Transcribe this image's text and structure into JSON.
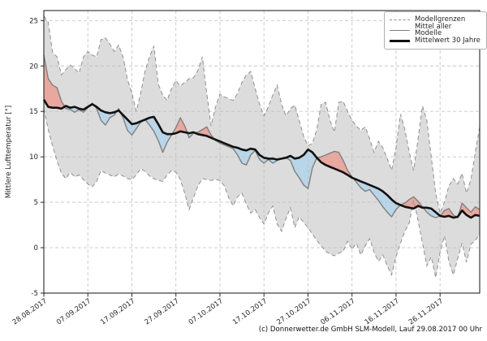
{
  "figure": {
    "caption": "(c) Donnerwetter.de GmbH SLM-Modell, Lauf 29.08.2017 00 Uhr"
  },
  "legend": {
    "position": "top-right",
    "items": [
      {
        "label": "Modellgrenzen",
        "swatch": "dashed-gray-line"
      },
      {
        "label": "Mittel aller Modelle",
        "swatch": "solid-gray-line"
      },
      {
        "label": "Mittelwert 30 Jahre",
        "swatch": "thick-black-line"
      }
    ]
  },
  "chart_data": {
    "type": "line",
    "title": "",
    "xlabel": "",
    "ylabel": "Mittlere Lufttemperatur [°]",
    "grid": true,
    "x_unit": "day index, day 0 = 28.08.2017, daily steps to ~05.12.2017",
    "ylim": [
      -5,
      26.1
    ],
    "y_ticks": [
      -5,
      0,
      5,
      10,
      15,
      20,
      25
    ],
    "x_tick_days": [
      0,
      10,
      20,
      30,
      40,
      50,
      60,
      70,
      80,
      90
    ],
    "x_tick_labels": [
      "28.08.2017",
      "07.09.2017",
      "17.09.2017",
      "27.09.2017",
      "07.10.2017",
      "17.10.2017",
      "27.10.2017",
      "06.11.2017",
      "16.11.2017",
      "26.11.2017"
    ],
    "colors": {
      "band_fill": "#dcdcdc",
      "envelope_stroke": "#8f8f8f",
      "warm_fill": "#e9a89f",
      "cold_fill": "#b9d5e8",
      "model_mean_line": "#7f7f7f",
      "climate_mean_line": "#111111",
      "grid": "#bdbdbd",
      "axis": "#262626"
    },
    "series": [
      {
        "name": "Modellgrenzen (oberes Limit)",
        "role": "envelope-max",
        "values": [
          25.5,
          24.8,
          21.5,
          21.0,
          19.0,
          19.6,
          20.1,
          19.7,
          19.2,
          21.0,
          21.6,
          21.2,
          21.0,
          22.9,
          23.1,
          22.4,
          21.6,
          22.3,
          21.0,
          18.5,
          17.0,
          15.0,
          17.0,
          19.5,
          21.0,
          22.2,
          18.0,
          16.8,
          16.2,
          17.5,
          18.4,
          17.8,
          18.2,
          18.6,
          18.7,
          19.5,
          21.0,
          17.0,
          13.4,
          15.5,
          16.9,
          16.6,
          16.4,
          16.2,
          17.0,
          18.2,
          19.0,
          19.4,
          17.5,
          15.8,
          14.5,
          15.5,
          16.8,
          17.9,
          15.8,
          14.5,
          15.3,
          15.7,
          14.0,
          12.3,
          11.2,
          11.5,
          13.0,
          15.8,
          16.0,
          14.0,
          12.7,
          16.0,
          16.1,
          15.0,
          14.0,
          13.4,
          12.9,
          13.3,
          12.0,
          10.5,
          11.7,
          11.0,
          9.8,
          8.5,
          11.0,
          14.7,
          13.0,
          10.5,
          8.5,
          12.0,
          15.6,
          14.0,
          10.0,
          6.0,
          3.8,
          5.0,
          6.8,
          7.6,
          7.0,
          8.2,
          6.0,
          7.5,
          10.5,
          13.3
        ]
      },
      {
        "name": "Modellgrenzen (unteres Limit)",
        "role": "envelope-min",
        "values": [
          15.3,
          13.0,
          11.2,
          9.5,
          8.2,
          7.6,
          8.3,
          7.8,
          8.0,
          7.5,
          7.0,
          6.7,
          7.3,
          8.5,
          8.2,
          8.0,
          7.8,
          8.1,
          7.9,
          7.6,
          7.5,
          8.0,
          8.7,
          8.4,
          7.9,
          7.6,
          7.4,
          7.3,
          8.0,
          8.5,
          8.3,
          7.5,
          6.0,
          4.2,
          5.5,
          6.8,
          7.6,
          7.5,
          7.4,
          7.5,
          7.4,
          6.8,
          5.5,
          4.6,
          5.6,
          6.0,
          4.8,
          3.8,
          4.2,
          3.3,
          2.6,
          3.8,
          4.6,
          2.6,
          1.8,
          3.2,
          4.4,
          2.2,
          3.4,
          2.8,
          2.2,
          1.5,
          0.8,
          0.2,
          -0.4,
          -0.7,
          -0.9,
          -0.6,
          -0.4,
          0.7,
          -0.2,
          0.5,
          -0.8,
          0.2,
          1.0,
          -0.5,
          -1.5,
          -0.8,
          -2.0,
          -3.0,
          -1.0,
          0.5,
          1.8,
          2.7,
          5.2,
          3.0,
          0.5,
          -2.0,
          -1.0,
          -3.3,
          -0.5,
          1.3,
          -1.5,
          -3.0,
          -1.2,
          0.5,
          -1.6,
          0.4,
          0.8,
          1.5
        ]
      },
      {
        "name": "Mittel aller Modelle",
        "role": "model-mean",
        "values": [
          21.2,
          18.6,
          17.9,
          17.6,
          16.1,
          15.3,
          15.2,
          14.9,
          15.2,
          14.9,
          15.4,
          15.9,
          15.3,
          14.0,
          13.5,
          14.3,
          14.6,
          15.3,
          14.3,
          12.9,
          12.4,
          13.1,
          13.8,
          14.1,
          13.5,
          12.8,
          11.8,
          10.5,
          11.6,
          12.4,
          13.2,
          14.3,
          13.4,
          12.1,
          12.6,
          12.7,
          13.0,
          13.3,
          12.4,
          11.8,
          11.5,
          11.3,
          11.1,
          10.9,
          10.2,
          9.3,
          9.1,
          10.2,
          10.7,
          9.7,
          9.3,
          9.7,
          9.3,
          9.6,
          9.8,
          9.9,
          9.6,
          8.4,
          7.7,
          6.9,
          6.5,
          8.8,
          9.9,
          10.0,
          10.2,
          10.4,
          10.6,
          10.5,
          9.6,
          8.5,
          7.8,
          7.2,
          6.6,
          6.2,
          6.4,
          5.8,
          5.2,
          4.5,
          3.9,
          3.4,
          4.2,
          4.7,
          4.9,
          5.3,
          5.6,
          5.1,
          4.5,
          3.9,
          3.5,
          3.3,
          3.5,
          4.1,
          4.3,
          3.6,
          3.3,
          4.9,
          4.4,
          3.9,
          4.5,
          4.2
        ]
      },
      {
        "name": "Mittelwert 30 Jahre",
        "role": "climate-mean",
        "values": [
          16.3,
          15.5,
          15.4,
          15.4,
          15.3,
          15.6,
          15.4,
          15.5,
          15.3,
          15.2,
          15.5,
          15.8,
          15.5,
          15.1,
          14.9,
          14.8,
          14.9,
          15.1,
          14.6,
          14.1,
          13.6,
          13.7,
          13.9,
          14.1,
          14.3,
          14.4,
          13.6,
          12.7,
          12.5,
          12.5,
          12.6,
          12.8,
          12.7,
          12.6,
          12.7,
          12.5,
          12.4,
          12.3,
          12.1,
          11.9,
          11.7,
          11.5,
          11.3,
          11.1,
          11.0,
          10.8,
          10.7,
          10.9,
          10.8,
          10.2,
          9.9,
          9.8,
          9.8,
          9.7,
          9.8,
          9.9,
          10.1,
          9.8,
          9.9,
          10.2,
          10.8,
          10.5,
          9.9,
          9.4,
          9.1,
          8.9,
          8.7,
          8.5,
          8.3,
          8.0,
          7.7,
          7.5,
          7.3,
          7.1,
          6.9,
          6.7,
          6.5,
          6.2,
          5.8,
          5.3,
          4.9,
          4.7,
          4.5,
          4.4,
          4.3,
          4.6,
          4.4,
          4.4,
          4.3,
          3.9,
          3.5,
          3.4,
          3.5,
          3.3,
          3.4,
          4.1,
          3.6,
          3.3,
          3.6,
          3.5
        ]
      }
    ],
    "fills_note": "red where model mean is above 30-year mean, blue where below; gray band between model min and max"
  }
}
